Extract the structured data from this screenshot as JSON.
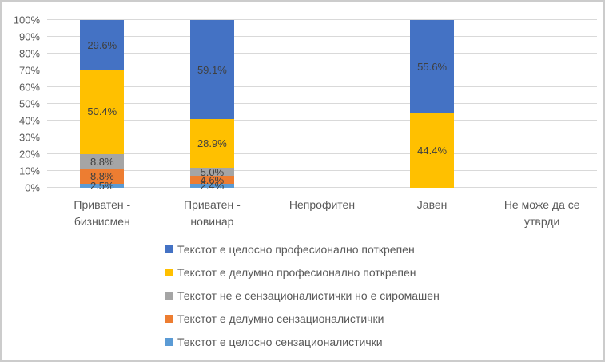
{
  "chart_data": {
    "type": "bar",
    "subtype": "stacked-100-percent",
    "title": "",
    "xlabel": "",
    "ylabel": "",
    "ylim": [
      0,
      100
    ],
    "grid": true,
    "legend_position": "bottom",
    "y_ticks": [
      "0%",
      "10%",
      "20%",
      "30%",
      "40%",
      "50%",
      "60%",
      "70%",
      "80%",
      "90%",
      "100%"
    ],
    "categories": [
      "Приватен - бизнисмен",
      "Приватен - новинар",
      "Непрофитен",
      "Јавен",
      "Не може да се утврди"
    ],
    "series": [
      {
        "name": "Текстот е целосно сензационалистички",
        "color": "#5B9BD5",
        "values": [
          2.5,
          2.4,
          null,
          null,
          null
        ]
      },
      {
        "name": "Текстот е делумно сензационалистички",
        "color": "#ED7D31",
        "values": [
          8.8,
          4.6,
          null,
          null,
          null
        ]
      },
      {
        "name": "Текстот не е сензационалистички но е сиромашен",
        "color": "#A5A5A5",
        "values": [
          8.8,
          5.0,
          null,
          null,
          null
        ]
      },
      {
        "name": "Текстот е делумно професионално поткрепен",
        "color": "#FFC000",
        "values": [
          50.4,
          28.9,
          null,
          44.4,
          null
        ]
      },
      {
        "name": "Текстот е целосно професионално поткрепен",
        "color": "#4472C4",
        "values": [
          29.6,
          59.1,
          null,
          55.6,
          null
        ]
      }
    ],
    "data_label_format": "0.0%"
  },
  "style": {
    "background": "#FFFFFF",
    "border_color": "#CCCCCC",
    "gridline_color": "#D9D9D9",
    "axis_text_color": "#595959",
    "label_color": "#404040"
  }
}
